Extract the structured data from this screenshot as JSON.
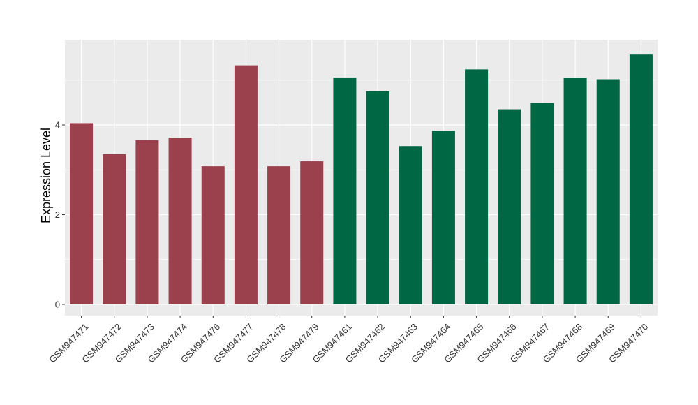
{
  "chart_data": {
    "type": "bar",
    "title": "",
    "xlabel": "",
    "ylabel": "Expression Level",
    "ylim": [
      -0.25,
      5.9
    ],
    "yticks": [
      0,
      2,
      4
    ],
    "grid": true,
    "legend": "none",
    "colors": {
      "group_a": "#9b414d",
      "group_b": "#006744",
      "panel_bg": "#ebebeb",
      "grid": "#ffffff"
    },
    "categories": [
      "GSM947471",
      "GSM947472",
      "GSM947473",
      "GSM947474",
      "GSM947476",
      "GSM947477",
      "GSM947478",
      "GSM947479",
      "GSM947461",
      "GSM947462",
      "GSM947463",
      "GSM947464",
      "GSM947465",
      "GSM947466",
      "GSM947467",
      "GSM947468",
      "GSM947469",
      "GSM947470"
    ],
    "values": [
      4.04,
      3.35,
      3.66,
      3.72,
      3.08,
      5.33,
      3.08,
      3.19,
      5.06,
      4.75,
      3.53,
      3.87,
      5.24,
      4.35,
      4.49,
      5.05,
      5.02,
      5.57
    ],
    "groups": [
      "group_a",
      "group_a",
      "group_a",
      "group_a",
      "group_a",
      "group_a",
      "group_a",
      "group_a",
      "group_b",
      "group_b",
      "group_b",
      "group_b",
      "group_b",
      "group_b",
      "group_b",
      "group_b",
      "group_b",
      "group_b"
    ]
  }
}
